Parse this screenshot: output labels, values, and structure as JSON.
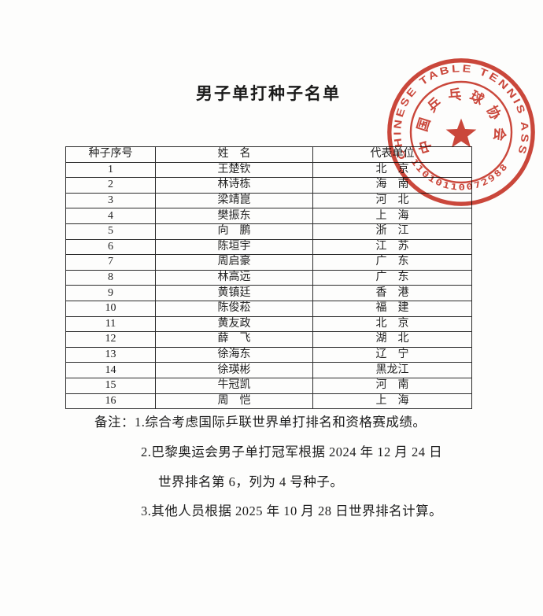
{
  "page": {
    "title": "男子单打种子名单"
  },
  "table": {
    "headers": [
      "种子序号",
      "姓　名",
      "代表单位"
    ],
    "rows": [
      {
        "seed": "1",
        "name": "王楚钦",
        "unit": "北　京"
      },
      {
        "seed": "2",
        "name": "林诗栋",
        "unit": "海　南"
      },
      {
        "seed": "3",
        "name": "梁靖崑",
        "unit": "河　北"
      },
      {
        "seed": "4",
        "name": "樊振东",
        "unit": "上　海"
      },
      {
        "seed": "5",
        "name": "向　鹏",
        "unit": "浙　江"
      },
      {
        "seed": "6",
        "name": "陈垣宇",
        "unit": "江　苏"
      },
      {
        "seed": "7",
        "name": "周启豪",
        "unit": "广　东"
      },
      {
        "seed": "8",
        "name": "林高远",
        "unit": "广　东"
      },
      {
        "seed": "9",
        "name": "黄镇廷",
        "unit": "香　港"
      },
      {
        "seed": "10",
        "name": "陈俊菘",
        "unit": "福　建"
      },
      {
        "seed": "11",
        "name": "黄友政",
        "unit": "北　京"
      },
      {
        "seed": "12",
        "name": "薛　飞",
        "unit": "湖　北"
      },
      {
        "seed": "13",
        "name": "徐海东",
        "unit": "辽　宁"
      },
      {
        "seed": "14",
        "name": "徐瑛彬",
        "unit": "黑龙江"
      },
      {
        "seed": "15",
        "name": "牛冠凯",
        "unit": "河　南"
      },
      {
        "seed": "16",
        "name": "周　恺",
        "unit": "上　海"
      }
    ]
  },
  "notes": {
    "lines": [
      "备注：1.综合考虑国际乒联世界单打排名和资格赛成绩。",
      "2.巴黎奥运会男子单打冠军根据 2024 年 12 月 24 日",
      "世界排名第 6，列为 4 号种子。",
      "3.其他人员根据 2025 年 10 月 28 日世界排名计算。"
    ]
  },
  "stamp": {
    "ring_text": "CHINESE TABLE TENNIS ASSOCIATION",
    "number": "11010110072988",
    "inner_text": "中国乒乓球协会",
    "star_icon": "red-star",
    "color": "#c8372a"
  }
}
